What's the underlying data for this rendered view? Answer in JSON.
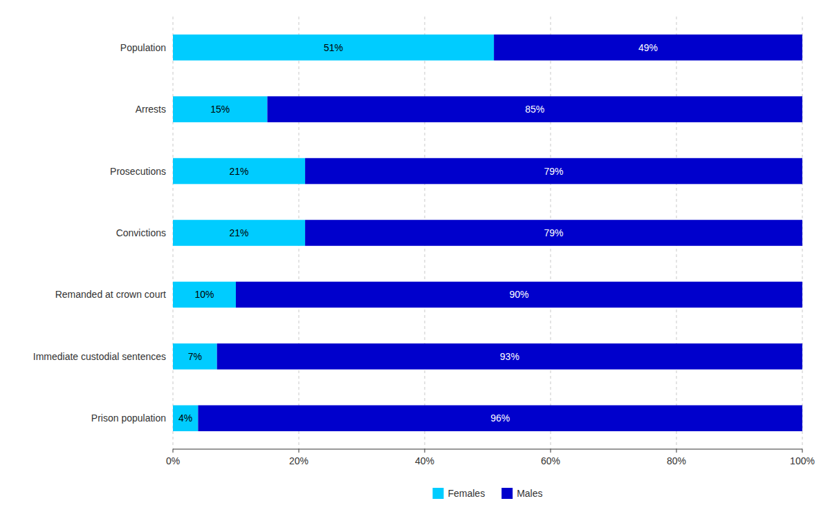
{
  "chart_data": {
    "type": "bar",
    "orientation": "horizontal",
    "stacked": true,
    "categories": [
      "Population",
      "Arrests",
      "Prosecutions",
      "Convictions",
      "Remanded at crown court",
      "Immediate custodial sentences",
      "Prison population"
    ],
    "series": [
      {
        "name": "Females",
        "color": "#00CCFF",
        "values": [
          51,
          15,
          21,
          21,
          10,
          7,
          4
        ],
        "value_labels": [
          "51%",
          "15%",
          "21%",
          "21%",
          "10%",
          "7%",
          "4%"
        ]
      },
      {
        "name": "Males",
        "color": "#0000CC",
        "values": [
          49,
          85,
          79,
          79,
          90,
          93,
          96
        ],
        "value_labels": [
          "49%",
          "85%",
          "79%",
          "79%",
          "90%",
          "93%",
          "96%"
        ]
      }
    ],
    "xlim": [
      0,
      100
    ],
    "xticks": [
      {
        "value": 0,
        "label": "0%"
      },
      {
        "value": 20,
        "label": "20%"
      },
      {
        "value": 40,
        "label": "40%"
      },
      {
        "value": 60,
        "label": "60%"
      },
      {
        "value": 80,
        "label": "80%"
      },
      {
        "value": 100,
        "label": "100%"
      }
    ],
    "grid": true,
    "data_labels": true,
    "legend": "bottom"
  }
}
